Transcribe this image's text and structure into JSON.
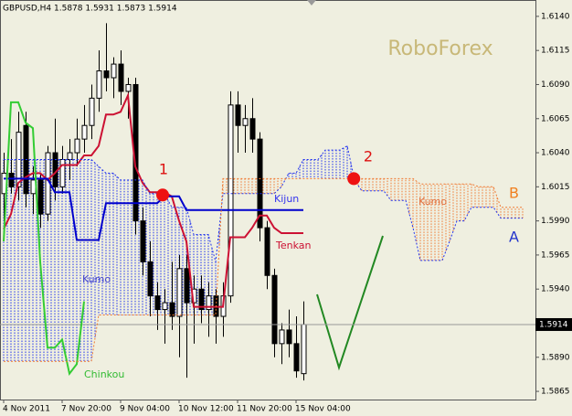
{
  "chart_data": {
    "type": "candlestick",
    "title": "GBPUSD,H4  1.5878 1.5931 1.5873 1.5914",
    "watermark": "RoboForex",
    "annotations": [
      "Kumo",
      "Kumo"
    ],
    "ylim": [
      1.5859,
      1.6152
    ],
    "yticks": [
      {
        "value": 1.614,
        "label": "1.6140"
      },
      1.6115,
      {
        "value": 1.609,
        "label": "1.6090"
      },
      1.6065,
      {
        "value": 1.604,
        "label": "1.6040"
      },
      1.6015,
      {
        "value": 1.599,
        "label": "1.5990"
      },
      1.5965,
      {
        "value": 1.594,
        "label": "1.5940"
      },
      {
        "value": 1.589,
        "label": "1.5890"
      },
      1.5865
    ],
    "xlim": [
      -0.5,
      72.75
    ],
    "xticks": [
      {
        "value": 0,
        "label": "4 Nov 2011"
      },
      {
        "value": 8,
        "label": "7 Nov 20:00"
      },
      {
        "value": 16,
        "label": "9 Nov 04:00"
      },
      {
        "value": 24,
        "label": "10 Nov 12:00"
      },
      {
        "value": 32,
        "label": "11 Nov 20:00"
      },
      {
        "value": 40,
        "label": "15 Nov 04:00"
      }
    ],
    "last_price": 1.5914,
    "open": [
      1.601,
      1.6025,
      1.6015,
      1.606,
      1.601,
      1.602,
      1.5995,
      1.604,
      1.6015,
      1.6035,
      1.604,
      1.605,
      1.606,
      1.608,
      1.61,
      1.6095,
      1.6105,
      1.6085,
      1.609,
      1.599,
      1.596,
      1.5935,
      1.5925,
      1.593,
      1.592,
      1.5955,
      1.593,
      1.594,
      1.5925,
      1.5935,
      1.592,
      1.5935,
      1.6075,
      1.606,
      1.6065,
      1.605,
      1.5985,
      1.595,
      1.59,
      1.591,
      1.59,
      1.5878
    ],
    "high": [
      1.604,
      1.605,
      1.607,
      1.607,
      1.603,
      1.6025,
      1.6045,
      1.6065,
      1.6045,
      1.605,
      1.6065,
      1.6075,
      1.609,
      1.6115,
      1.6135,
      1.611,
      1.6115,
      1.6095,
      1.6095,
      1.6,
      1.5975,
      1.5945,
      1.594,
      1.596,
      1.5965,
      1.5965,
      1.595,
      1.595,
      1.5945,
      1.594,
      1.5945,
      1.6085,
      1.6085,
      1.6075,
      1.608,
      1.6055,
      1.599,
      1.5955,
      1.5915,
      1.5925,
      1.592,
      1.5931
    ],
    "low": [
      1.599,
      1.601,
      1.6005,
      1.6,
      1.5995,
      1.5985,
      1.599,
      1.6005,
      1.601,
      1.602,
      1.603,
      1.604,
      1.605,
      1.607,
      1.6085,
      1.608,
      1.6075,
      1.6065,
      1.598,
      1.595,
      1.592,
      1.591,
      1.59,
      1.591,
      1.589,
      1.5875,
      1.59,
      1.5915,
      1.5905,
      1.59,
      1.5905,
      1.593,
      1.604,
      1.604,
      1.604,
      1.5975,
      1.594,
      1.589,
      1.5885,
      1.589,
      1.5875,
      1.5873
    ],
    "close": [
      1.6025,
      1.6015,
      1.6055,
      1.601,
      1.602,
      1.5995,
      1.604,
      1.6015,
      1.6035,
      1.604,
      1.605,
      1.606,
      1.608,
      1.61,
      1.6095,
      1.6105,
      1.6085,
      1.609,
      1.599,
      1.596,
      1.5935,
      1.5925,
      1.593,
      1.592,
      1.5955,
      1.593,
      1.594,
      1.5925,
      1.5935,
      1.592,
      1.5935,
      1.6075,
      1.606,
      1.6065,
      1.605,
      1.5985,
      1.595,
      1.59,
      1.591,
      1.59,
      1.588,
      1.5914
    ],
    "series": [
      {
        "name": "Tenkan",
        "color": "#cc1133",
        "style": "solid",
        "values": [
          1.5984,
          1.5995,
          1.6018,
          1.6022,
          1.6025,
          1.6025,
          1.602,
          1.6025,
          1.6031,
          1.6031,
          1.6031,
          1.6038,
          1.6038,
          1.6045,
          1.6068,
          1.6068,
          1.607,
          1.6082,
          1.603,
          1.6018,
          1.6011,
          1.6011,
          1.6011,
          1.6008,
          1.599,
          1.5975,
          1.5927,
          1.5927,
          1.5927,
          1.5927,
          1.5927,
          1.5978,
          1.5978,
          1.5978,
          1.5985,
          1.5994,
          1.5994,
          1.5985,
          1.5981,
          1.5981,
          1.5981,
          1.5981,
          null,
          null,
          null,
          null,
          null,
          null,
          null,
          null,
          null,
          null,
          null,
          null,
          null,
          null,
          null,
          null,
          null,
          null,
          null,
          null,
          null,
          null,
          null,
          null,
          null,
          null,
          null,
          null,
          null,
          null
        ]
      },
      {
        "name": "Kijun",
        "color": "#0000cc",
        "style": "solid",
        "values": [
          1.6021,
          1.6021,
          1.6021,
          1.6021,
          1.6021,
          1.6021,
          1.6021,
          1.6011,
          1.6011,
          1.6011,
          1.5976,
          1.5976,
          1.5976,
          1.5976,
          1.6003,
          1.6003,
          1.6003,
          1.6003,
          1.6003,
          1.6003,
          1.6003,
          1.6003,
          1.6008,
          1.6008,
          1.6008,
          1.5998,
          1.5998,
          1.5998,
          1.5998,
          1.5998,
          1.5998,
          1.5998,
          1.5998,
          1.5998,
          1.5998,
          1.5998,
          1.5998,
          1.5998,
          1.5998,
          1.5998,
          1.5998,
          1.5998,
          null,
          null,
          null,
          null,
          null,
          null,
          null,
          null,
          null,
          null,
          null,
          null,
          null,
          null,
          null,
          null,
          null,
          null,
          null,
          null,
          null,
          null,
          null,
          null,
          null,
          null,
          null,
          null,
          null,
          null
        ]
      },
      {
        "name": "Chinkou",
        "color": "#33cc33",
        "style": "solid",
        "values": [
          1.5975,
          1.6077,
          1.6077,
          1.6062,
          1.6058,
          1.596,
          1.5897,
          1.5897,
          1.5903,
          1.5878,
          1.5885,
          1.5931,
          null,
          null,
          null,
          null,
          null,
          null,
          null,
          null,
          null,
          null,
          null,
          null,
          null,
          null,
          null,
          null,
          null,
          null,
          null,
          null,
          null,
          null,
          null,
          null,
          null,
          null,
          null,
          null,
          null,
          null,
          null,
          null,
          null,
          null,
          null,
          null,
          null,
          null,
          null,
          null,
          null,
          null,
          null,
          null,
          null,
          null,
          null,
          null,
          null,
          null,
          null,
          null,
          null,
          null,
          null,
          null,
          null,
          null,
          null,
          null
        ]
      },
      {
        "name": "A",
        "color": "#2233ee",
        "style": "dotted",
        "values": [
          1.6035,
          1.6035,
          1.6035,
          1.6035,
          1.6035,
          1.6035,
          1.6035,
          1.6035,
          1.6035,
          1.6035,
          1.6035,
          1.6035,
          1.6035,
          1.603,
          1.6025,
          1.6025,
          1.602,
          1.602,
          1.602,
          1.602,
          1.601,
          1.601,
          1.601,
          1.6,
          1.6,
          1.6,
          1.598,
          1.598,
          1.598,
          1.596,
          1.601,
          1.601,
          1.601,
          1.601,
          1.601,
          1.601,
          1.601,
          1.601,
          1.6015,
          1.6025,
          1.6025,
          1.6035,
          1.6035,
          1.6035,
          1.6042,
          1.6042,
          1.6042,
          1.6045,
          1.602,
          1.6012,
          1.6012,
          1.6012,
          1.6012,
          1.6005,
          1.6005,
          1.6005,
          1.5985,
          1.5961,
          1.5961,
          1.5961,
          1.5961,
          1.5975,
          1.599,
          1.599,
          1.6,
          1.6,
          1.6,
          1.6,
          1.5992,
          1.5992,
          1.5992,
          1.5992
        ]
      },
      {
        "name": "B",
        "color": "#f07830",
        "style": "dotted",
        "values": [
          1.5887,
          1.5887,
          1.5887,
          1.5887,
          1.5887,
          1.5887,
          1.5887,
          1.5887,
          1.5887,
          1.5887,
          1.5887,
          1.5887,
          1.5887,
          1.5921,
          1.5921,
          1.5921,
          1.5921,
          1.5921,
          1.5921,
          1.5921,
          1.5921,
          1.5921,
          1.5921,
          1.5921,
          1.5921,
          1.5921,
          1.5921,
          1.5921,
          1.5921,
          1.5921,
          1.6021,
          1.6021,
          1.6021,
          1.6021,
          1.6021,
          1.6021,
          1.6021,
          1.6021,
          1.6021,
          1.6021,
          1.6021,
          1.6021,
          1.6021,
          1.6021,
          1.6021,
          1.6021,
          1.6021,
          1.6021,
          1.6021,
          1.6021,
          1.6021,
          1.6021,
          1.6021,
          1.6021,
          1.6021,
          1.6021,
          1.6021,
          1.6017,
          1.6017,
          1.6017,
          1.6017,
          1.6017,
          1.6017,
          1.6017,
          1.6017,
          1.6015,
          1.6015,
          1.6015,
          1.6,
          1.6,
          1.6,
          1.6
        ]
      }
    ],
    "signals": [
      {
        "label": "1",
        "x": 21.75,
        "value": 1.6009
      },
      {
        "label": "2",
        "x": 47.9,
        "value": 1.6021
      }
    ]
  }
}
